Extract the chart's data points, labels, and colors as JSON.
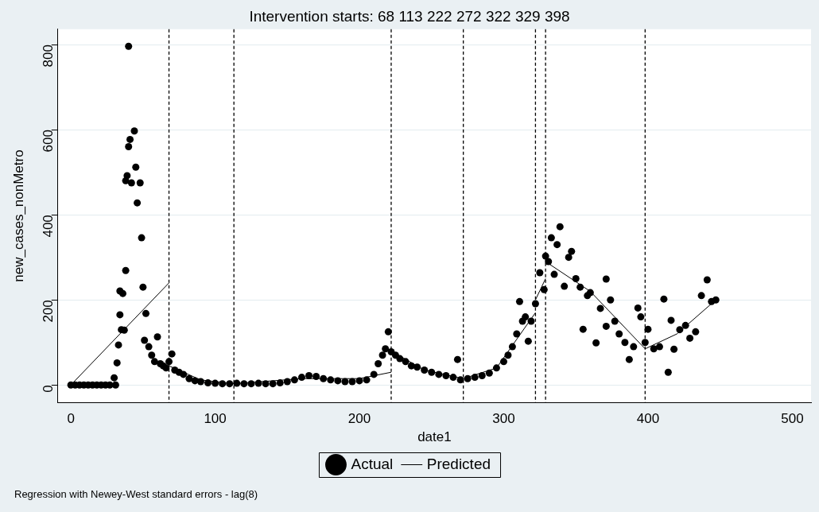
{
  "chart_data": {
    "type": "scatter",
    "title": "Intervention starts: 68 113 222 272 322 329 398",
    "xlabel": "date1",
    "ylabel": "new_cases_nonMetro",
    "xlim": [
      -9,
      513
    ],
    "ylim": [
      -41,
      836
    ],
    "xticks": [
      0,
      100,
      200,
      300,
      400,
      500
    ],
    "yticks": [
      0,
      200,
      400,
      600,
      800
    ],
    "grid": "y",
    "legend": "bottom",
    "series": [
      {
        "name": "Actual",
        "marker": "circle",
        "color": "#000000",
        "x": [
          0,
          3,
          6,
          9,
          12,
          15,
          18,
          21,
          24,
          27,
          30,
          31,
          32,
          33,
          34,
          34,
          35,
          36,
          37,
          38,
          38,
          39,
          40,
          40,
          41,
          42,
          44,
          45,
          46,
          48,
          49,
          50,
          51,
          52,
          54,
          56,
          58,
          60,
          62,
          64,
          66,
          68,
          70,
          72,
          75,
          78,
          82,
          86,
          90,
          95,
          100,
          105,
          110,
          115,
          120,
          125,
          130,
          135,
          140,
          145,
          150,
          155,
          160,
          165,
          170,
          175,
          180,
          185,
          190,
          195,
          200,
          205,
          210,
          213,
          216,
          218,
          220,
          222,
          225,
          228,
          232,
          236,
          240,
          245,
          250,
          255,
          260,
          265,
          268,
          270,
          275,
          280,
          285,
          290,
          295,
          300,
          303,
          306,
          309,
          311,
          313,
          315,
          317,
          319,
          322,
          325,
          328,
          329,
          331,
          333,
          335,
          337,
          339,
          342,
          345,
          347,
          350,
          353,
          355,
          358,
          360,
          364,
          367,
          371,
          371,
          374,
          377,
          380,
          384,
          387,
          390,
          393,
          395,
          398,
          400,
          404,
          408,
          411,
          414,
          416,
          418,
          422,
          426,
          429,
          433,
          437,
          441,
          444,
          447
        ],
        "values": [
          0,
          0,
          0,
          0,
          0,
          0,
          0,
          0,
          0,
          0,
          17,
          0,
          52,
          94,
          221,
          165,
          130,
          215,
          129,
          269,
          480,
          492,
          796,
          560,
          577,
          475,
          597,
          512,
          428,
          475,
          346,
          230,
          105,
          168,
          90,
          70,
          55,
          113,
          50,
          45,
          40,
          55,
          73,
          35,
          30,
          25,
          15,
          10,
          8,
          5,
          4,
          3,
          3,
          4,
          3,
          3,
          4,
          3,
          3,
          5,
          8,
          12,
          18,
          22,
          20,
          15,
          12,
          10,
          8,
          8,
          10,
          12,
          25,
          50,
          70,
          85,
          125,
          78,
          70,
          62,
          55,
          45,
          42,
          35,
          30,
          25,
          22,
          18,
          60,
          12,
          15,
          18,
          22,
          28,
          40,
          55,
          70,
          90,
          120,
          196,
          150,
          160,
          103,
          150,
          191,
          264,
          224,
          303,
          290,
          346,
          260,
          330,
          372,
          232,
          300,
          314,
          250,
          230,
          131,
          210,
          217,
          99,
          180,
          249,
          138,
          200,
          150,
          120,
          100,
          60,
          90,
          181,
          160,
          100,
          131,
          85,
          90,
          202,
          30,
          152,
          84,
          130,
          140,
          110,
          125,
          210,
          247,
          196,
          200
        ]
      },
      {
        "name": "Predicted",
        "type": "line",
        "color": "#000000",
        "x": [
          0,
          68
        ],
        "values": [
          0,
          240
        ]
      },
      {
        "type": "line",
        "color": "#000000",
        "x": [
          68,
          90,
          113,
          160,
          200,
          222
        ],
        "values": [
          45,
          12,
          3,
          15,
          15,
          30
        ]
      },
      {
        "type": "line",
        "color": "#000000",
        "x": [
          222,
          245,
          272,
          295,
          322
        ],
        "values": [
          80,
          35,
          15,
          40,
          170
        ]
      },
      {
        "type": "line",
        "color": "#000000",
        "x": [
          322,
          329
        ],
        "values": [
          200,
          250
        ]
      },
      {
        "type": "line",
        "color": "#000000",
        "x": [
          329,
          360,
          398,
          420,
          447
        ],
        "values": [
          290,
          220,
          85,
          120,
          200
        ]
      }
    ],
    "ref_lines": [
      {
        "axis": "x",
        "value": 68,
        "line_style": "dashed",
        "color": "#000000"
      },
      {
        "axis": "x",
        "value": 113,
        "line_style": "dashed",
        "color": "#000000"
      },
      {
        "axis": "x",
        "value": 222,
        "line_style": "dashed",
        "color": "#000000"
      },
      {
        "axis": "x",
        "value": 272,
        "line_style": "dashed",
        "color": "#000000"
      },
      {
        "axis": "x",
        "value": 322,
        "line_style": "dashed",
        "color": "#000000"
      },
      {
        "axis": "x",
        "value": 329,
        "line_style": "dashed",
        "color": "#000000"
      },
      {
        "axis": "x",
        "value": 398,
        "line_style": "dashed",
        "color": "#000000"
      }
    ],
    "annotations": [
      "Regression with Newey-West standard errors - lag(8)"
    ]
  }
}
